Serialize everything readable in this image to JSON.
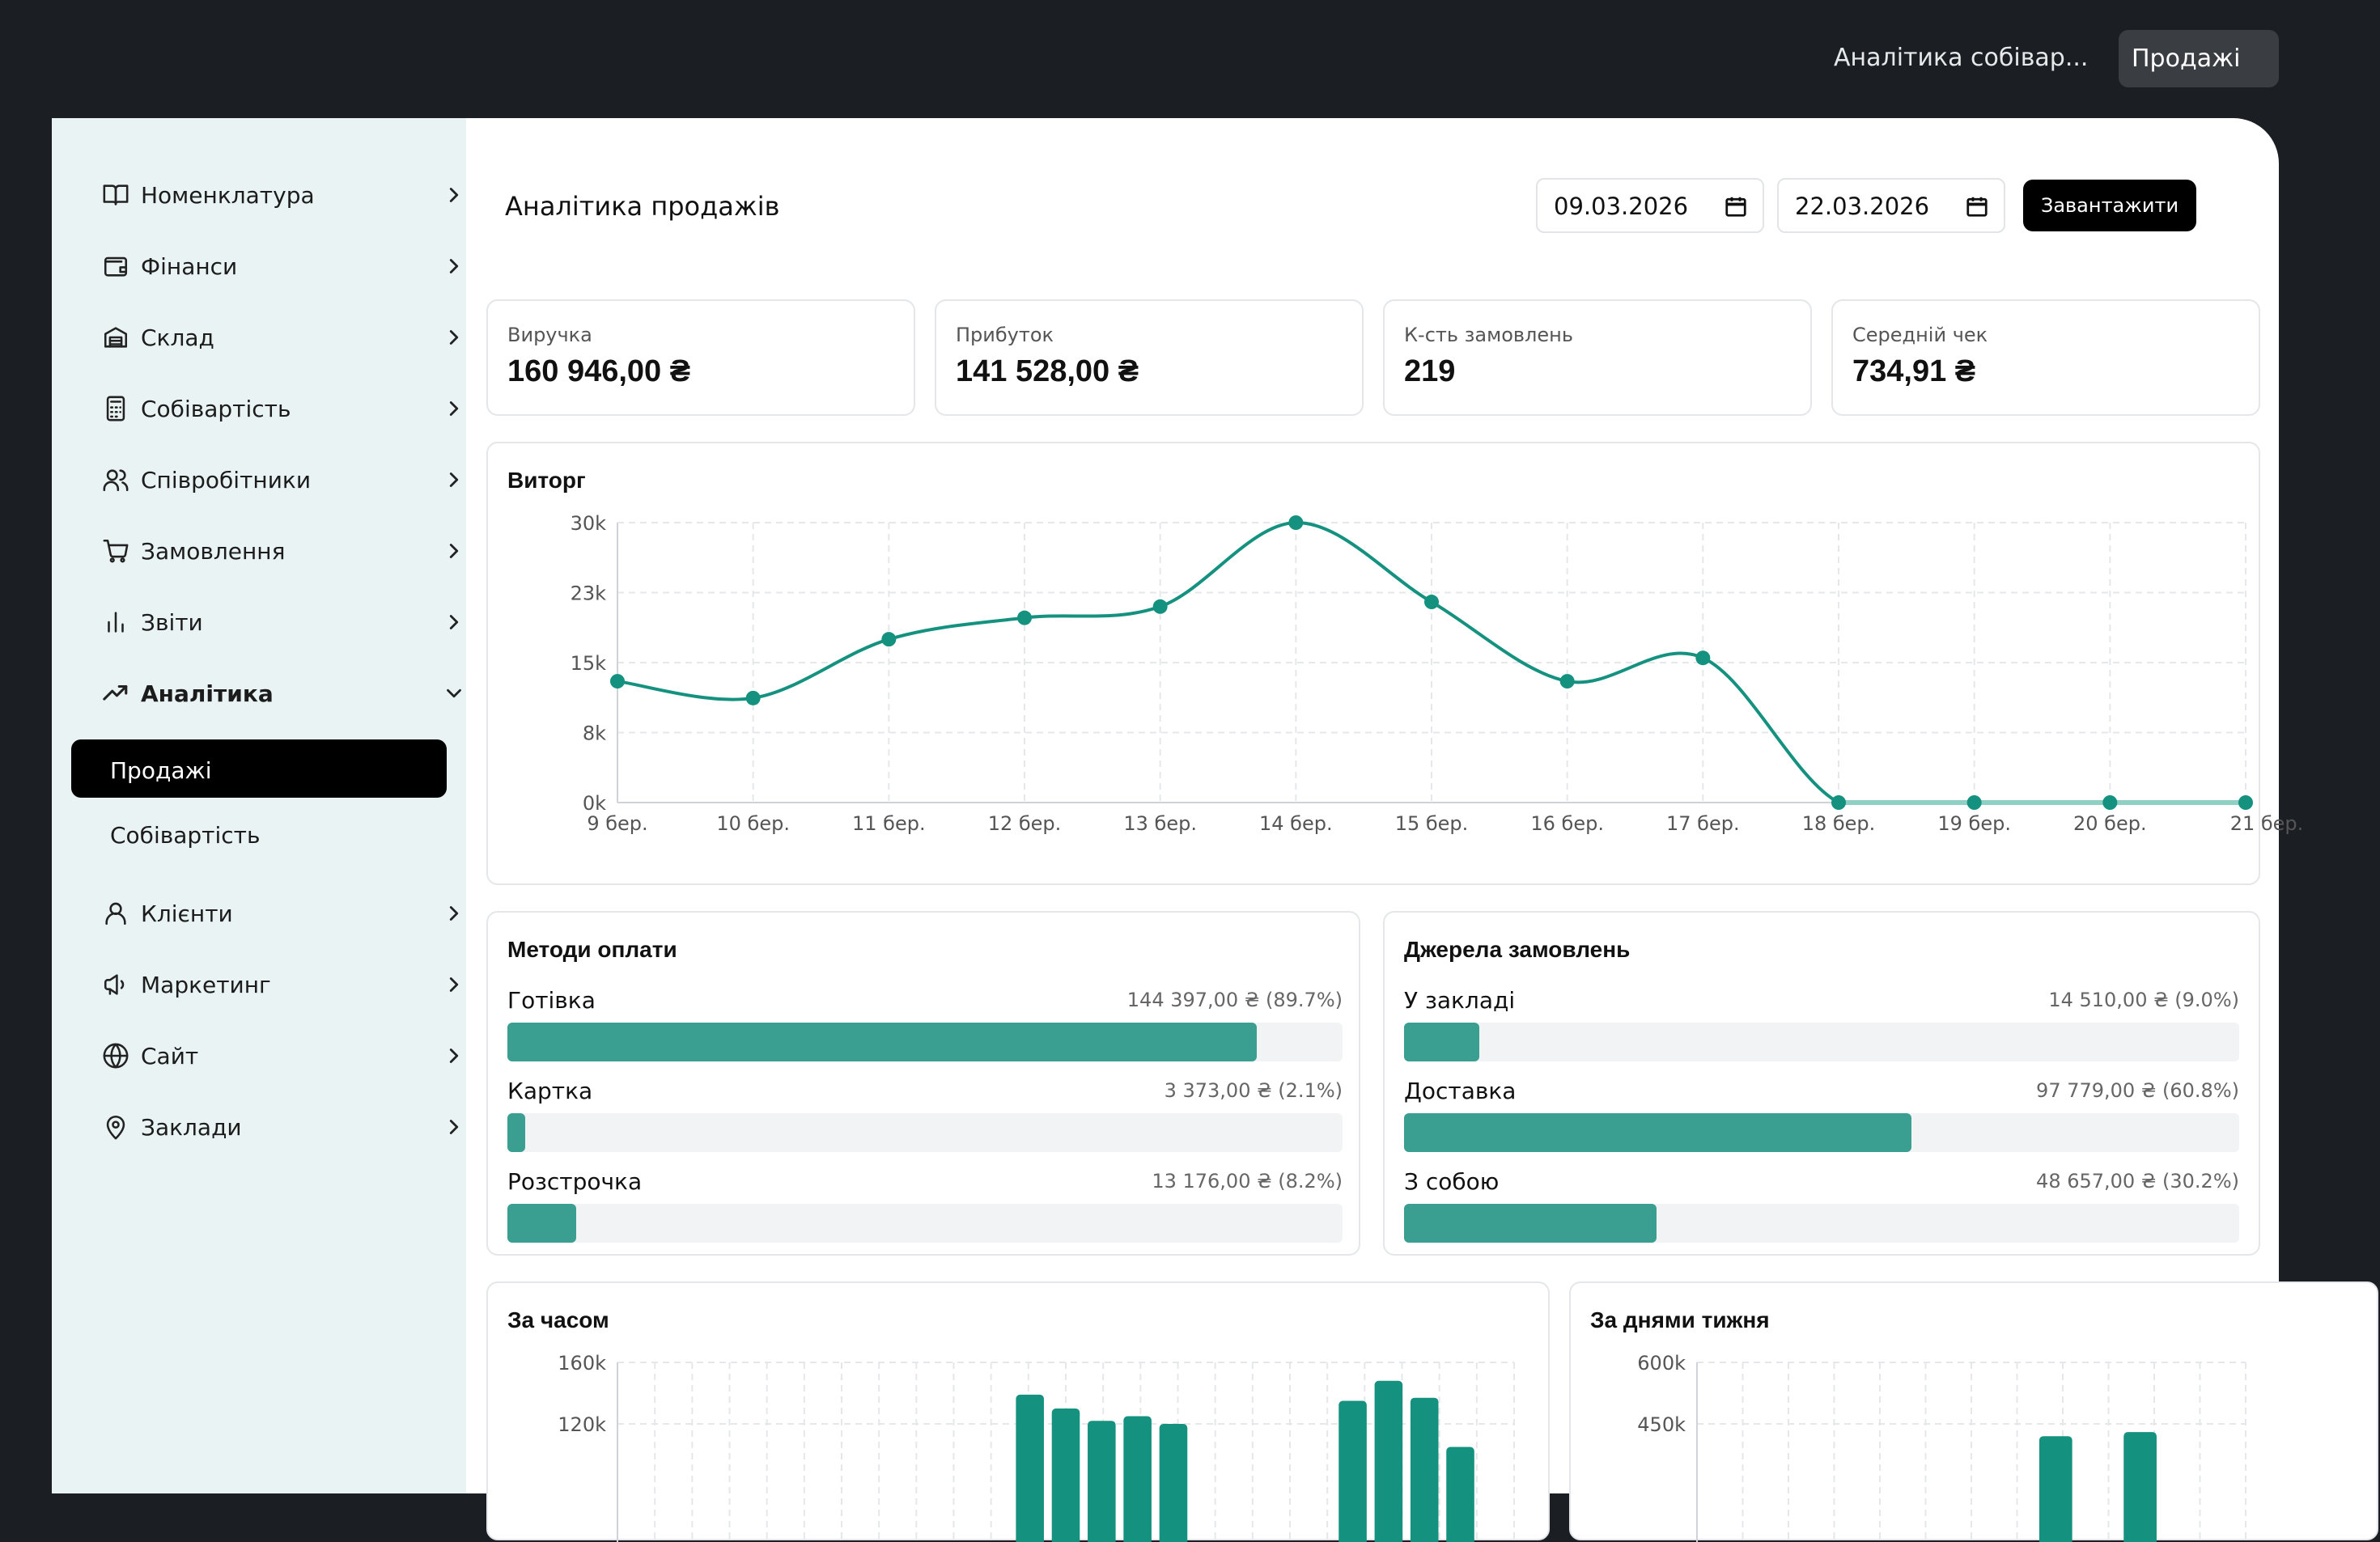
{
  "header": {
    "breadcrumb": "Аналітика собівар...",
    "select_value": "Продажі"
  },
  "sidebar": {
    "items": [
      {
        "label": "Номенклатура",
        "icon": "book-icon"
      },
      {
        "label": "Фінанси",
        "icon": "wallet-icon"
      },
      {
        "label": "Склад",
        "icon": "warehouse-icon"
      },
      {
        "label": "Собівартість",
        "icon": "calculator-icon"
      },
      {
        "label": "Співробітники",
        "icon": "users-icon"
      },
      {
        "label": "Замовлення",
        "icon": "cart-icon"
      },
      {
        "label": "Звіти",
        "icon": "bar-chart-icon"
      },
      {
        "label": "Аналітика",
        "icon": "trending-up-icon",
        "expanded": true
      },
      {
        "label": "Клієнти",
        "icon": "user-icon"
      },
      {
        "label": "Маркетинг",
        "icon": "megaphone-icon"
      },
      {
        "label": "Сайт",
        "icon": "globe-icon"
      },
      {
        "label": "Заклади",
        "icon": "map-pin-icon"
      }
    ],
    "subitems": [
      {
        "label": "Продажі",
        "active": true
      },
      {
        "label": "Собівартість",
        "active": false
      }
    ]
  },
  "main": {
    "title": "Аналітика продажів",
    "date_from": "09.03.2026",
    "date_to": "22.03.2026",
    "load_label": "Завантажити",
    "kpis": [
      {
        "label": "Виручка",
        "value": "160 946,00 ₴"
      },
      {
        "label": "Прибуток",
        "value": "141 528,00 ₴"
      },
      {
        "label": "К-сть замовлень",
        "value": "219"
      },
      {
        "label": "Середній чек",
        "value": "734,91 ₴"
      }
    ],
    "revenue_title": "Виторг",
    "payment_title": "Методи оплати",
    "payments": [
      {
        "name": "Готівка",
        "value": "144 397,00 ₴ (89.7%)",
        "pct": 89.7
      },
      {
        "name": "Картка",
        "value": "3 373,00 ₴ (2.1%)",
        "pct": 2.1
      },
      {
        "name": "Розстрочка",
        "value": "13 176,00 ₴ (8.2%)",
        "pct": 8.2
      }
    ],
    "sources_title": "Джерела замовлень",
    "sources": [
      {
        "name": "У закладі",
        "value": "14 510,00 ₴ (9.0%)",
        "pct": 9.0
      },
      {
        "name": "Доставка",
        "value": "97 779,00 ₴ (60.8%)",
        "pct": 60.8
      },
      {
        "name": "З собою",
        "value": "48 657,00 ₴ (30.2%)",
        "pct": 30.2
      }
    ],
    "hourly_title": "За часом",
    "weekday_title": "За днями тижня"
  },
  "colors": {
    "accent": "#14917f",
    "bar": "#3a9e90",
    "active_nav": "#000000",
    "sidebar_bg": "#eaf3f4"
  },
  "chart_data": [
    {
      "type": "line",
      "title": "Виторг",
      "categories": [
        "9 бер.",
        "10 бер.",
        "11 бер.",
        "12 бер.",
        "13 бер.",
        "14 бер.",
        "15 бер.",
        "16 бер.",
        "17 бер.",
        "18 бер.",
        "19 бер.",
        "20 бер.",
        "21 бер."
      ],
      "values": [
        13000,
        11200,
        17500,
        19800,
        21000,
        30000,
        21500,
        13000,
        15500,
        0,
        0,
        0,
        0
      ],
      "yticks": [
        "0k",
        "8k",
        "15k",
        "23k",
        "30k"
      ],
      "ylim": [
        0,
        30000
      ],
      "grid": true
    },
    {
      "type": "bar",
      "title": "За часом",
      "yticks": [
        "120k",
        "160k"
      ],
      "values": [
        0,
        0,
        0,
        0,
        0,
        0,
        0,
        0,
        0,
        0,
        0,
        139000,
        130000,
        122000,
        125000,
        120000,
        0,
        0,
        0,
        0,
        135000,
        148000,
        137000,
        105000,
        0
      ],
      "ylim": [
        0,
        160000
      ],
      "grid": true
    },
    {
      "type": "bar",
      "title": "За днями тижня",
      "yticks": [
        "450k",
        "600k"
      ],
      "values": [
        0,
        0,
        0,
        0,
        0,
        0,
        0,
        0,
        420000,
        0,
        430000,
        0,
        0
      ],
      "ylim": [
        0,
        600000
      ],
      "grid": true
    }
  ]
}
